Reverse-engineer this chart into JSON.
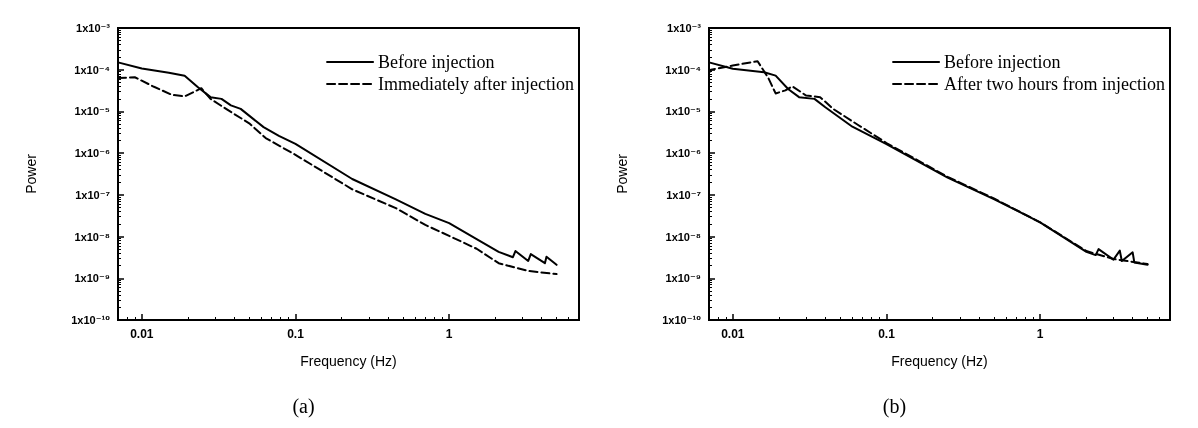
{
  "chart_data": [
    {
      "type": "line",
      "xlabel": "Frequency (Hz)",
      "ylabel": "Power",
      "annotations": [
        "(a)"
      ],
      "log": "xy",
      "grid": false,
      "legend": "top right",
      "marker": "none",
      "xlim": [
        0.007,
        7
      ],
      "ylim": [
        1e-10,
        0.001
      ],
      "xticks": [
        0.01,
        0.1,
        1
      ],
      "yticks": [
        {
          "value": 1e-10,
          "label": "1x10⁻¹⁰"
        },
        {
          "value": 1e-09,
          "label": "1x10⁻⁹"
        },
        {
          "value": 1e-08,
          "label": "1x10⁻⁸"
        },
        {
          "value": 1e-07,
          "label": "1x10⁻⁷"
        },
        {
          "value": 1e-06,
          "label": "1x10⁻⁶"
        },
        {
          "value": 1e-05,
          "label": "1x10⁻⁵"
        },
        {
          "value": 0.0001,
          "label": "1x10⁻⁴"
        },
        {
          "value": 0.001,
          "label": "1x10⁻³"
        }
      ],
      "series": [
        {
          "name": "Before injection",
          "color": "#000000",
          "line_style": "solid",
          "x": [
            0.007,
            0.01,
            0.015,
            0.019,
            0.023,
            0.028,
            0.033,
            0.038,
            0.044,
            0.062,
            0.078,
            0.1,
            0.234,
            0.45,
            0.7,
            1,
            1.51,
            2.1,
            2.6,
            2.7,
            3.27,
            3.4,
            4.2,
            4.3,
            5
          ],
          "values": [
            0.00015,
            0.000107,
            8.5e-05,
            7.2e-05,
            3.9e-05,
            2.2e-05,
            2e-05,
            1.4e-05,
            1.15e-05,
            4.2e-06,
            2.6e-06,
            1.66e-06,
            2.4e-07,
            7.8e-08,
            3.5e-08,
            2.1e-08,
            8.7e-09,
            4.3e-09,
            3.2e-09,
            4.5e-09,
            2.6e-09,
            3.8e-09,
            2.3e-09,
            3.3e-09,
            2.1e-09
          ]
        },
        {
          "name": "Immediately after injection",
          "color": "#000000",
          "line_style": "dashed",
          "x": [
            0.007,
            0.009,
            0.012,
            0.0157,
            0.019,
            0.0244,
            0.028,
            0.036,
            0.05,
            0.064,
            0.1,
            0.234,
            0.45,
            0.7,
            1,
            1.51,
            2.1,
            3.27,
            5
          ],
          "values": [
            6.3e-05,
            6.6e-05,
            3.9e-05,
            2.5e-05,
            2.3e-05,
            3.6e-05,
            2e-05,
            1.1e-05,
            5.2e-06,
            2.3e-06,
            9.1e-07,
            1.36e-07,
            4.8e-08,
            1.9e-08,
            1.04e-08,
            5.1e-09,
            2.3e-09,
            1.5e-09,
            1.26e-09
          ]
        }
      ]
    },
    {
      "type": "line",
      "xlabel": "Frequency (Hz)",
      "ylabel": "Power",
      "annotations": [
        "(b)"
      ],
      "log": "xy",
      "grid": false,
      "legend": "top right",
      "marker": "none",
      "xlim": [
        0.007,
        7
      ],
      "ylim": [
        1e-10,
        0.001
      ],
      "xticks": [
        0.01,
        0.1,
        1
      ],
      "yticks": [
        {
          "value": 1e-10,
          "label": "1x10⁻¹⁰"
        },
        {
          "value": 1e-09,
          "label": "1x10⁻⁹"
        },
        {
          "value": 1e-08,
          "label": "1x10⁻⁸"
        },
        {
          "value": 1e-07,
          "label": "1x10⁻⁷"
        },
        {
          "value": 1e-06,
          "label": "1x10⁻⁶"
        },
        {
          "value": 1e-05,
          "label": "1x10⁻⁵"
        },
        {
          "value": 0.0001,
          "label": "1x10⁻⁴"
        },
        {
          "value": 0.001,
          "label": "1x10⁻³"
        }
      ],
      "series": [
        {
          "name": "Before injection",
          "color": "#000000",
          "line_style": "solid",
          "x": [
            0.007,
            0.01,
            0.016,
            0.019,
            0.023,
            0.027,
            0.034,
            0.04,
            0.06,
            0.1,
            0.25,
            0.5,
            1,
            2,
            2.3,
            2.4,
            3,
            3.3,
            3.4,
            4,
            4.1,
            5
          ],
          "values": [
            0.00015,
            0.000105,
            8.7e-05,
            7.2e-05,
            3.4e-05,
            2.2e-05,
            2e-05,
            1.26e-05,
            4.3e-06,
            1.65e-06,
            2.6e-07,
            7.9e-08,
            2.2e-08,
            4.3e-09,
            3.6e-09,
            5e-09,
            2.8e-09,
            4.6e-09,
            2.6e-09,
            4.2e-09,
            2.4e-09,
            2.1e-09
          ]
        },
        {
          "name": "After two hours from injection",
          "color": "#000000",
          "line_style": "dashed",
          "x": [
            0.007,
            0.0072,
            0.01,
            0.0145,
            0.017,
            0.019,
            0.022,
            0.0244,
            0.03,
            0.037,
            0.045,
            0.065,
            0.1,
            0.25,
            0.5,
            1,
            2,
            3,
            5
          ],
          "values": [
            8.3e-05,
            0.0001,
            0.000126,
            0.00016,
            6.4e-05,
            2.7e-05,
            3.2e-05,
            4e-05,
            2.4e-05,
            2.2e-05,
            1.15e-05,
            4.8e-06,
            1.75e-06,
            2.7e-07,
            8.2e-08,
            2.2e-08,
            4.5e-09,
            2.9e-09,
            2.2e-09
          ]
        }
      ]
    }
  ]
}
